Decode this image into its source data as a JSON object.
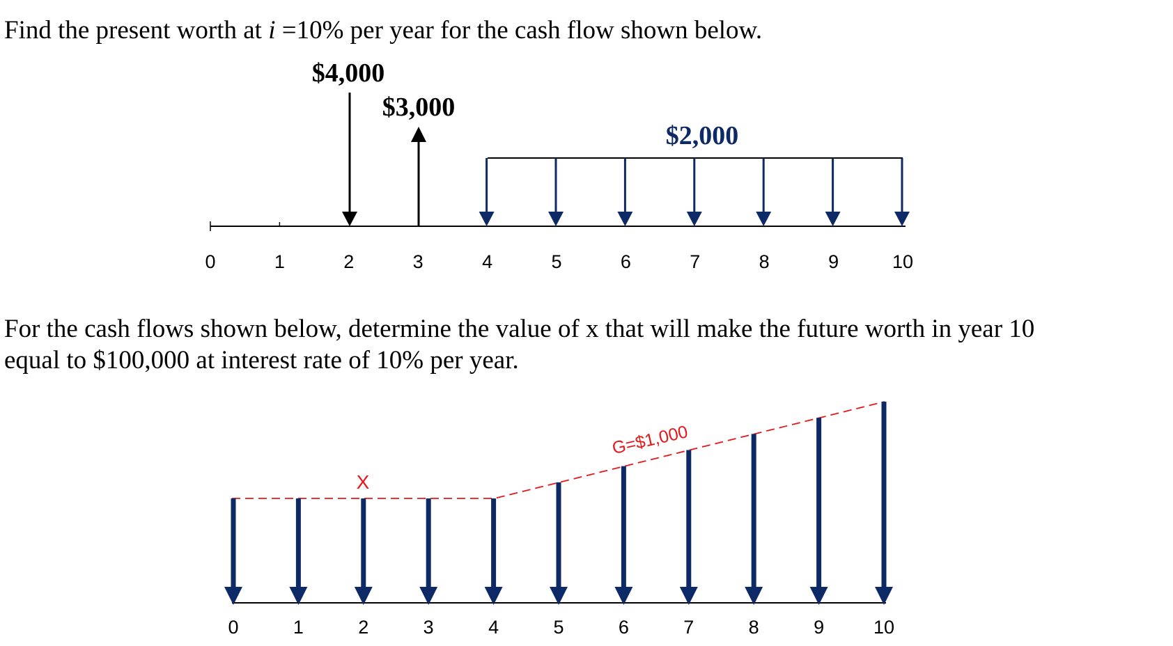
{
  "problem1": {
    "text_before": "Find the present worth at ",
    "text_var": "i",
    "text_after": " =10% per year for the cash flow shown below.",
    "amount_down": "$4,000",
    "amount_up": "$3,000",
    "amount_series": "$2,000",
    "ticks": [
      "0",
      "1",
      "2",
      "3",
      "4",
      "5",
      "6",
      "7",
      "8",
      "9",
      "10"
    ],
    "colors": {
      "black": "#000000",
      "navy": "#0d2a66"
    }
  },
  "problem2": {
    "line1": "For the cash flows shown below, determine the value of x that will make the future worth in year 10",
    "line2": "equal to $100,000 at interest rate of 10% per year.",
    "x_label": "X",
    "gradient_label": "G=$1,000",
    "ticks": [
      "0",
      "1",
      "2",
      "3",
      "4",
      "5",
      "6",
      "7",
      "8",
      "9",
      "10"
    ],
    "colors": {
      "navy": "#0d2a66",
      "red": "#e8161b"
    }
  }
}
